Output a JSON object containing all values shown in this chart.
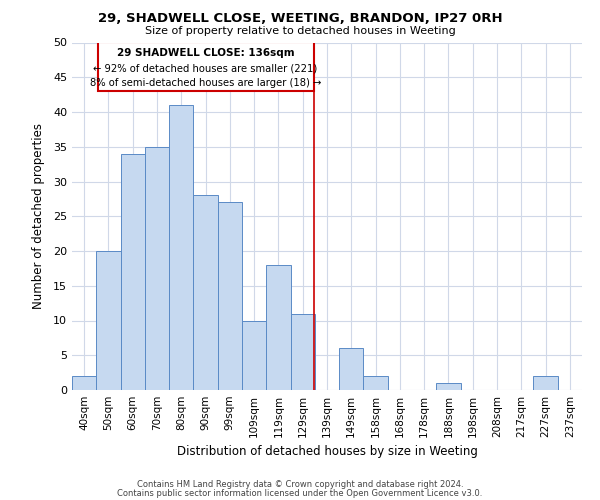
{
  "title": "29, SHADWELL CLOSE, WEETING, BRANDON, IP27 0RH",
  "subtitle": "Size of property relative to detached houses in Weeting",
  "xlabel": "Distribution of detached houses by size in Weeting",
  "ylabel": "Number of detached properties",
  "bar_color": "#c6d9f0",
  "bar_edge_color": "#5a8ac6",
  "categories": [
    "40sqm",
    "50sqm",
    "60sqm",
    "70sqm",
    "80sqm",
    "90sqm",
    "99sqm",
    "109sqm",
    "119sqm",
    "129sqm",
    "139sqm",
    "149sqm",
    "158sqm",
    "168sqm",
    "178sqm",
    "188sqm",
    "198sqm",
    "208sqm",
    "217sqm",
    "227sqm",
    "237sqm"
  ],
  "values": [
    2,
    20,
    34,
    35,
    41,
    28,
    27,
    10,
    18,
    11,
    0,
    6,
    2,
    0,
    0,
    1,
    0,
    0,
    0,
    2,
    0
  ],
  "ylim": [
    0,
    50
  ],
  "yticks": [
    0,
    5,
    10,
    15,
    20,
    25,
    30,
    35,
    40,
    45,
    50
  ],
  "annotation_title": "29 SHADWELL CLOSE: 136sqm",
  "annotation_line1": "← 92% of detached houses are smaller (221)",
  "annotation_line2": "8% of semi-detached houses are larger (18) →",
  "vline_color": "#cc0000",
  "annotation_box_edge_color": "#cc0000",
  "footer1": "Contains HM Land Registry data © Crown copyright and database right 2024.",
  "footer2": "Contains public sector information licensed under the Open Government Licence v3.0.",
  "background_color": "#ffffff",
  "grid_color": "#d0d8e8"
}
